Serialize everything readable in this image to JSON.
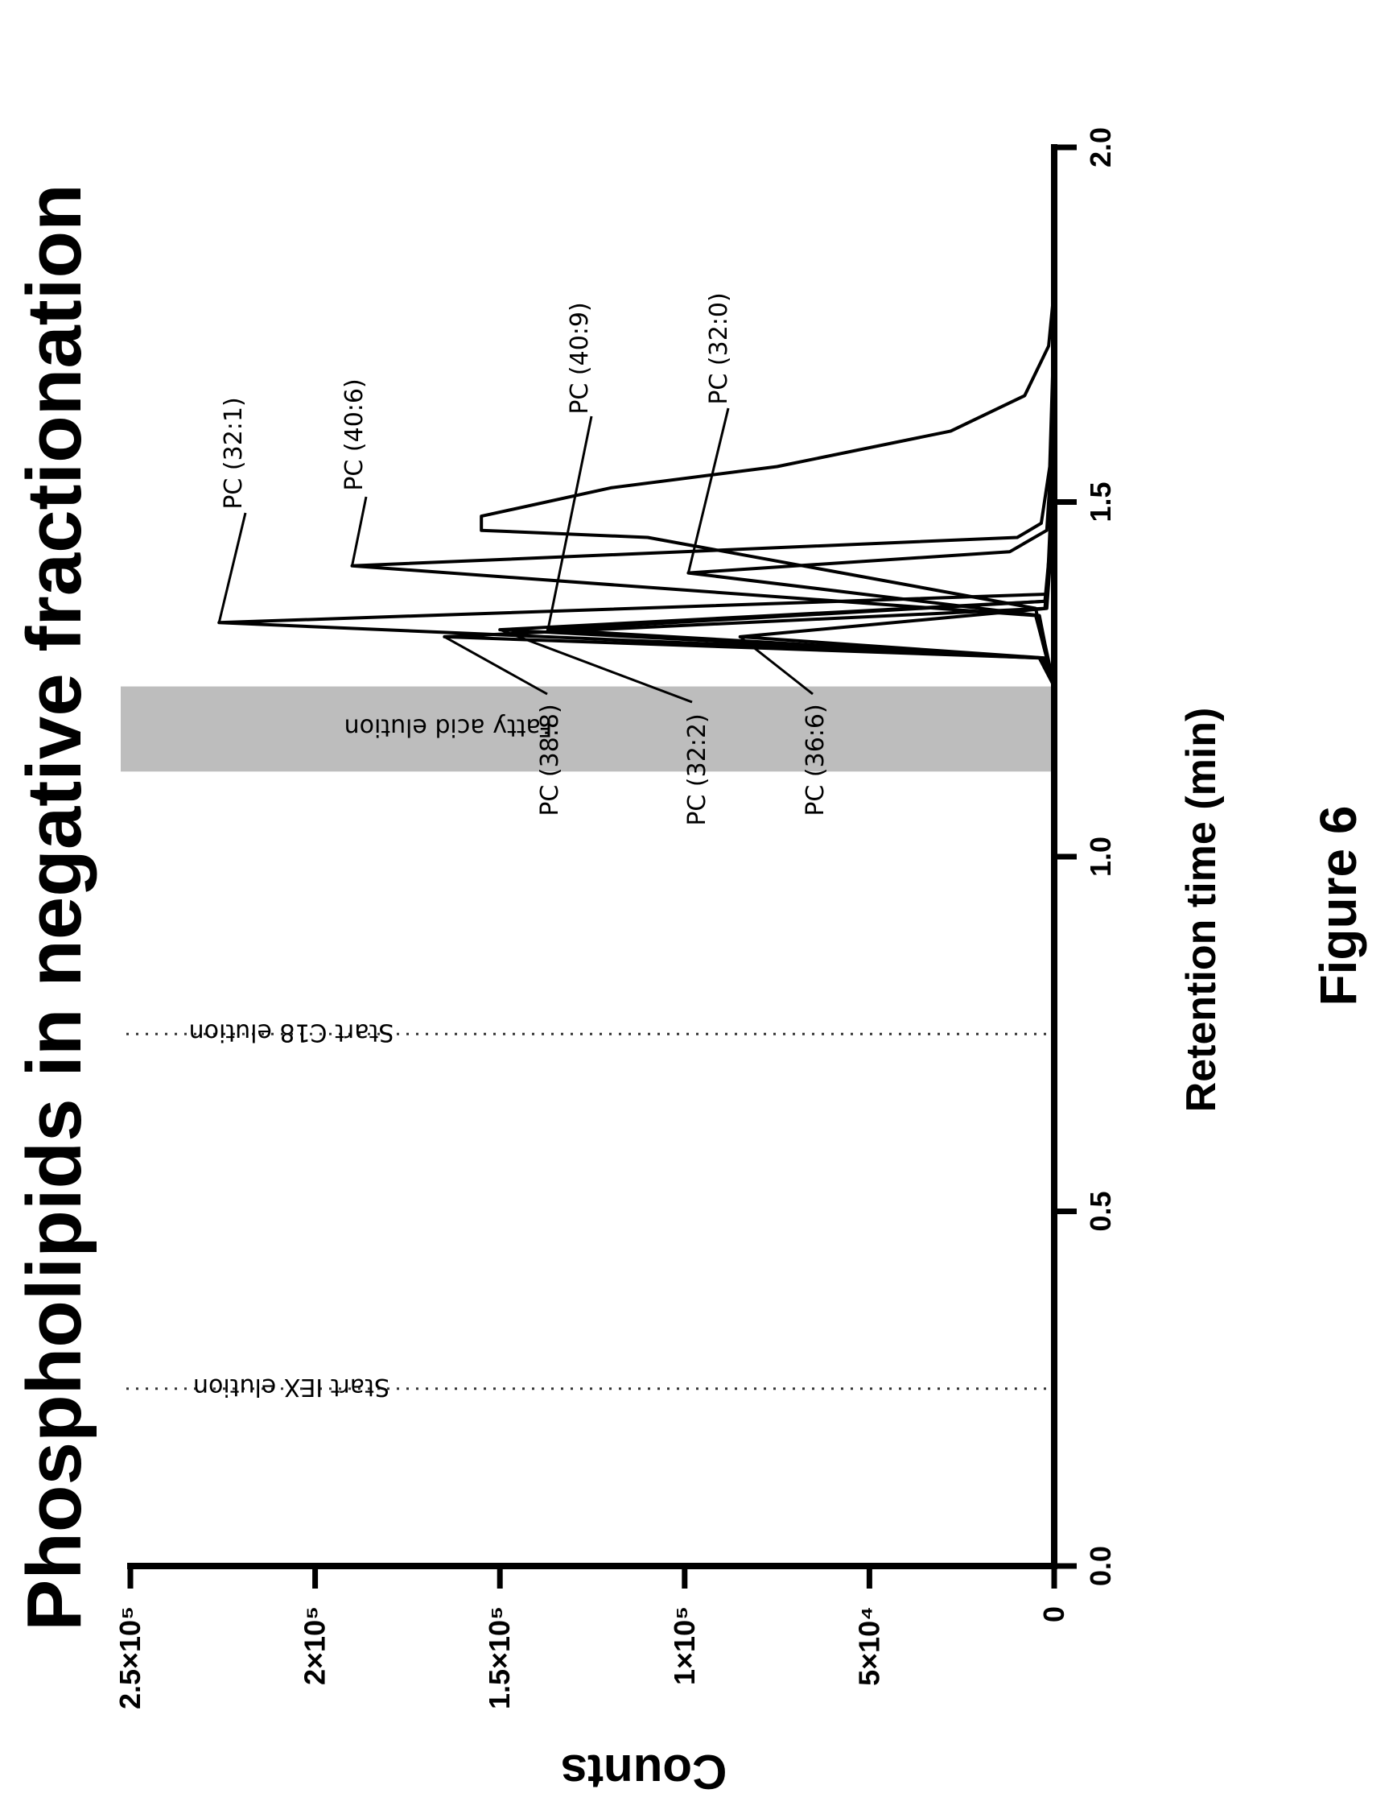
{
  "chart_data": {
    "type": "line",
    "title": "Phospholipids in negative fractionation",
    "xlabel": "Retention time (min)",
    "ylabel": "Counts",
    "caption": "Figure 6",
    "xlim": [
      0.0,
      2.0
    ],
    "ylim": [
      0,
      250000
    ],
    "x_ticks": [
      0.0,
      0.5,
      1.0,
      1.5,
      2.0
    ],
    "x_tick_labels": [
      "0.0",
      "0.5",
      "1.0",
      "1.5",
      "2.0"
    ],
    "y_ticks": [
      0,
      50000,
      100000,
      150000,
      200000,
      250000
    ],
    "y_tick_labels": [
      "0",
      "5×10⁴",
      "1×10⁵",
      "1.5×10⁵",
      "2×10⁵",
      "2.5×10⁵"
    ],
    "grid": false,
    "markers": [
      {
        "x": 0.25,
        "label": "Start IEX elution"
      },
      {
        "x": 0.75,
        "label": "Start C18 elution"
      }
    ],
    "bands": [
      {
        "x_start": 1.12,
        "x_end": 1.24,
        "label": "Fatty acid elution"
      }
    ],
    "series": [
      {
        "name": "PC (32:1)",
        "peak_x": 1.33,
        "peak_y": 226000,
        "points": [
          [
            1.24,
            0
          ],
          [
            1.28,
            4000
          ],
          [
            1.33,
            226000
          ],
          [
            1.37,
            2000
          ],
          [
            1.42,
            1500
          ],
          [
            1.5,
            800
          ],
          [
            1.65,
            300
          ],
          [
            1.8,
            0
          ]
        ]
      },
      {
        "name": "PC (40:6)",
        "peak_x": 1.41,
        "peak_y": 190000,
        "points": [
          [
            1.24,
            0
          ],
          [
            1.3,
            3000
          ],
          [
            1.34,
            5000
          ],
          [
            1.41,
            190000
          ],
          [
            1.45,
            10000
          ],
          [
            1.47,
            3500
          ],
          [
            1.55,
            1200
          ],
          [
            1.7,
            300
          ],
          [
            1.8,
            0
          ]
        ]
      },
      {
        "name": "PC (40:9)",
        "peak_x": 1.32,
        "peak_y": 137000,
        "points": [
          [
            1.24,
            0
          ],
          [
            1.28,
            3000
          ],
          [
            1.32,
            137000
          ],
          [
            1.36,
            2500
          ],
          [
            1.45,
            900
          ],
          [
            1.6,
            200
          ],
          [
            1.8,
            0
          ]
        ]
      },
      {
        "name": "PC (32:0)",
        "peak_x": 1.4,
        "peak_y": 99000,
        "points": [
          [
            1.24,
            0
          ],
          [
            1.3,
            2500
          ],
          [
            1.34,
            4000
          ],
          [
            1.4,
            99000
          ],
          [
            1.43,
            12000
          ],
          [
            1.46,
            2000
          ],
          [
            1.55,
            900
          ],
          [
            1.7,
            200
          ],
          [
            1.8,
            0
          ]
        ]
      },
      {
        "name": "PC (38:8)",
        "peak_x": 1.31,
        "peak_y": 165000,
        "points": [
          [
            1.24,
            0
          ],
          [
            1.28,
            3000
          ],
          [
            1.31,
            165000
          ],
          [
            1.35,
            2500
          ],
          [
            1.45,
            800
          ],
          [
            1.6,
            200
          ],
          [
            1.8,
            0
          ]
        ]
      },
      {
        "name": "PC (32:2)",
        "peak_x": 1.32,
        "peak_y": 150000,
        "points": [
          [
            1.24,
            0
          ],
          [
            1.28,
            3000
          ],
          [
            1.32,
            150000
          ],
          [
            1.36,
            2200
          ],
          [
            1.45,
            700
          ],
          [
            1.6,
            200
          ],
          [
            1.8,
            0
          ]
        ]
      },
      {
        "name": "PC (36:6)",
        "peak_x": 1.31,
        "peak_y": 85000,
        "points": [
          [
            1.24,
            0
          ],
          [
            1.28,
            2500
          ],
          [
            1.31,
            85000
          ],
          [
            1.35,
            2000
          ],
          [
            1.45,
            600
          ],
          [
            1.6,
            150
          ],
          [
            1.8,
            0
          ]
        ]
      },
      {
        "name": "",
        "peak_x": 1.46,
        "peak_y": 155000,
        "points": [
          [
            1.24,
            0
          ],
          [
            1.3,
            3000
          ],
          [
            1.35,
            5000
          ],
          [
            1.45,
            110000
          ],
          [
            1.46,
            155000
          ],
          [
            1.48,
            155000
          ],
          [
            1.52,
            120000
          ],
          [
            1.55,
            75000
          ],
          [
            1.6,
            28000
          ],
          [
            1.65,
            8000
          ],
          [
            1.72,
            1500
          ],
          [
            1.8,
            0
          ]
        ]
      }
    ]
  }
}
